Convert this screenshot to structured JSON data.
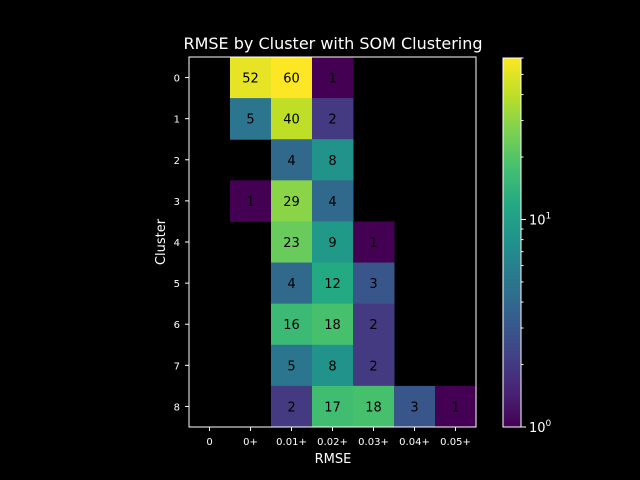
{
  "chart_data": {
    "type": "heatmap",
    "title": "RMSE by Cluster with SOM Clustering",
    "xlabel": "RMSE",
    "ylabel": "Cluster",
    "x_categories": [
      "0",
      "0+",
      "0.01+",
      "0.02+",
      "0.03+",
      "0.04+",
      "0.05+"
    ],
    "y_categories": [
      "0",
      "1",
      "2",
      "3",
      "4",
      "5",
      "6",
      "7",
      "8"
    ],
    "values": [
      [
        null,
        52,
        60,
        1,
        null,
        null,
        null
      ],
      [
        null,
        5,
        40,
        2,
        null,
        null,
        null
      ],
      [
        null,
        null,
        4,
        8,
        null,
        null,
        null
      ],
      [
        null,
        1,
        29,
        4,
        null,
        null,
        null
      ],
      [
        null,
        null,
        23,
        9,
        1,
        null,
        null
      ],
      [
        null,
        null,
        4,
        12,
        3,
        null,
        null
      ],
      [
        null,
        null,
        16,
        18,
        2,
        null,
        null
      ],
      [
        null,
        null,
        5,
        8,
        2,
        null,
        null
      ],
      [
        null,
        null,
        2,
        17,
        18,
        3,
        1
      ]
    ],
    "color_scale": "log",
    "colormap": "viridis",
    "color_range": [
      1,
      60
    ],
    "colorbar_ticks": [
      "10^0",
      "10^1"
    ],
    "background": "#000000",
    "text_color": "#ffffff",
    "cell_text_color": "#000000",
    "grid": false
  }
}
